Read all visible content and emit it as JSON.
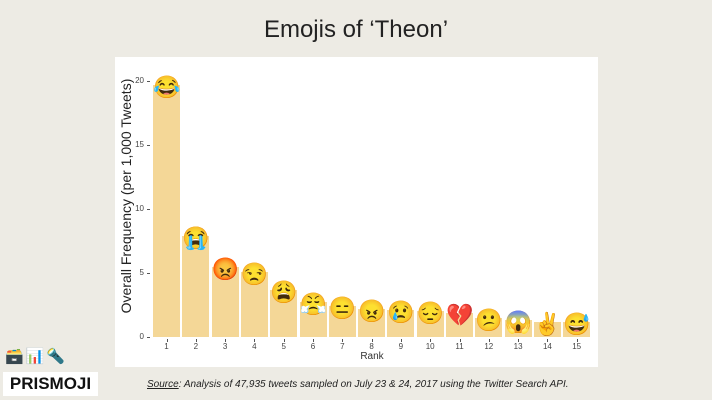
{
  "title": "Emojis of ‘Theon’",
  "chart_data": {
    "type": "bar",
    "title": "Emojis of ‘Theon’",
    "xlabel": "Rank",
    "ylabel": "Overall Frequency (per 1,000 Tweets)",
    "ylim": [
      0,
      20.5
    ],
    "yticks": [
      0,
      5,
      10,
      15,
      20
    ],
    "grid": false,
    "categories": [
      "1",
      "2",
      "3",
      "4",
      "5",
      "6",
      "7",
      "8",
      "9",
      "10",
      "11",
      "12",
      "13",
      "14",
      "15"
    ],
    "values": [
      19.7,
      7.9,
      5.5,
      5.1,
      3.7,
      2.7,
      2.4,
      2.2,
      2.1,
      2.0,
      1.9,
      1.5,
      1.3,
      1.2,
      1.2
    ],
    "emojis": [
      "😂",
      "😭",
      "😡",
      "😒",
      "😩",
      "😤",
      "😑",
      "😠",
      "😢",
      "😔",
      "💔",
      "😕",
      "😱",
      "✌️",
      "😅"
    ],
    "bar_color": "#f4d797"
  },
  "footer": {
    "icons": [
      "🗃️",
      "📊",
      "🔦"
    ],
    "brand": "PRISMOJI",
    "source_label": "Source",
    "source_text": ": Analysis of 47,935 tweets sampled on July 23 & 24, 2017 using the Twitter Search API."
  }
}
